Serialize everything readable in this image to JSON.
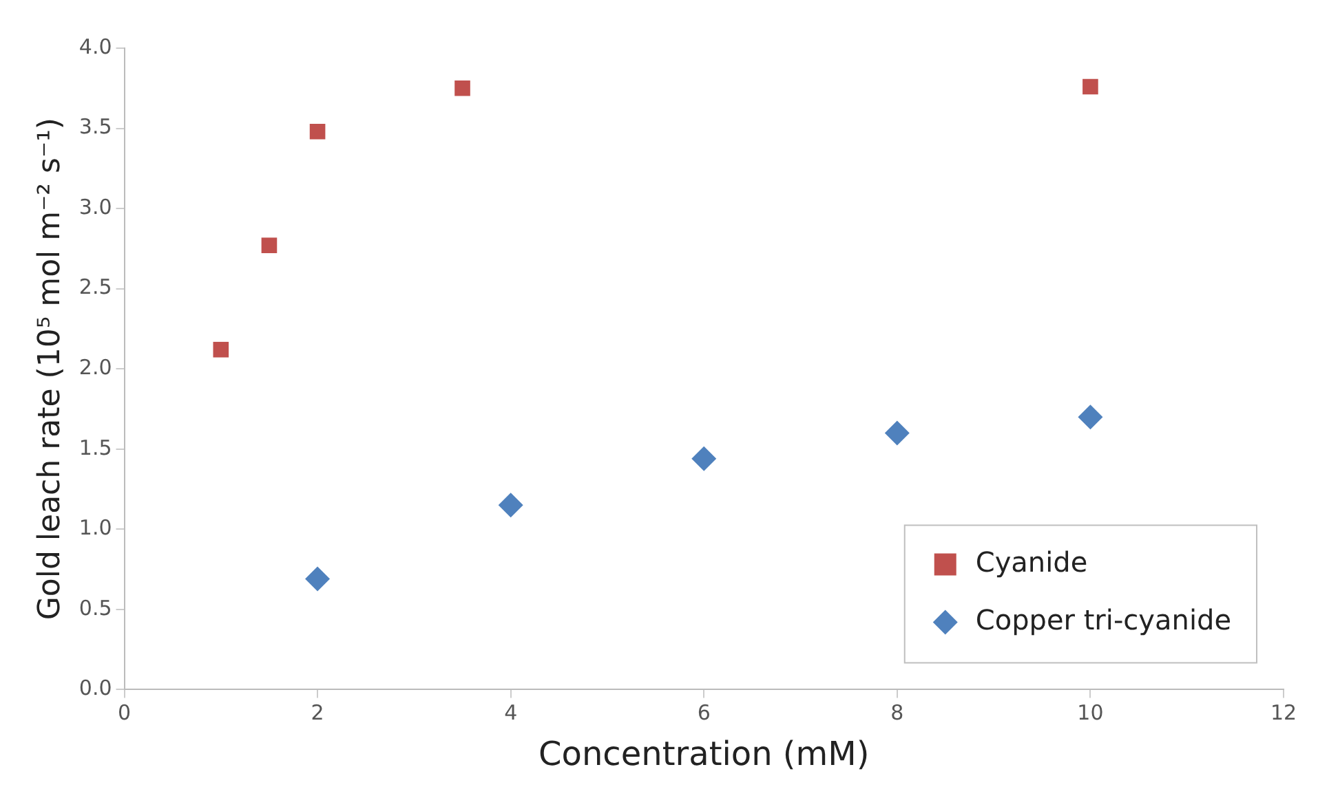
{
  "chart_data": {
    "type": "scatter",
    "xlabel": "Concentration (mM)",
    "ylabel": "Gold leach rate (10⁵ mol m⁻² s⁻¹)",
    "xlim": [
      0,
      12
    ],
    "xticks": [
      0,
      2,
      4,
      6,
      8,
      10,
      12
    ],
    "ylim": [
      0,
      4
    ],
    "yticks": [
      {
        "value": 0,
        "label": "0.0"
      },
      {
        "value": 0.5,
        "label": "0.5"
      },
      {
        "value": 1,
        "label": "1.0"
      },
      {
        "value": 1.5,
        "label": "1.5"
      },
      {
        "value": 2,
        "label": "2.0"
      },
      {
        "value": 2.5,
        "label": "2.5"
      },
      {
        "value": 3,
        "label": "3.0"
      },
      {
        "value": 3.5,
        "label": "3.5"
      },
      {
        "value": 4,
        "label": "4.0"
      }
    ],
    "grid": false,
    "legend": "bottom right",
    "series": [
      {
        "name": "Cyanide",
        "color": "#c0504d",
        "marker": "square",
        "x": [
          1,
          1.5,
          2,
          3.5,
          10
        ],
        "values": [
          2.12,
          2.77,
          3.48,
          3.75,
          3.76
        ]
      },
      {
        "name": "Copper tri-cyanide",
        "color": "#4f81bd",
        "marker": "diamond",
        "x": [
          2,
          4,
          6,
          8,
          10
        ],
        "values": [
          0.69,
          1.15,
          1.44,
          1.6,
          1.7
        ]
      }
    ]
  }
}
